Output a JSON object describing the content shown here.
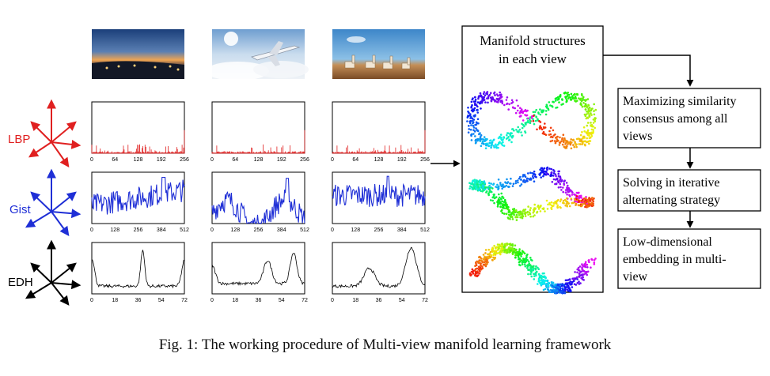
{
  "views": [
    {
      "name": "LBP",
      "color": "#e02020",
      "ticks": [
        "0",
        "64",
        "128",
        "192",
        "256"
      ]
    },
    {
      "name": "Gist",
      "color": "#1f2fd6",
      "ticks": [
        "0",
        "128",
        "256",
        "384",
        "512"
      ]
    },
    {
      "name": "EDH",
      "color": "#000000",
      "ticks": [
        "0",
        "18",
        "36",
        "54",
        "72"
      ]
    }
  ],
  "photos": [
    {
      "icon": "city-night-photo-icon"
    },
    {
      "icon": "airplane-clouds-photo-icon"
    },
    {
      "icon": "alpacas-photo-icon"
    }
  ],
  "manifold_panel": {
    "title_line1": "Manifold structures",
    "title_line2": "in each view"
  },
  "steps": [
    {
      "lines": [
        "Maximizing similarity",
        "consensus among all",
        "views"
      ]
    },
    {
      "lines": [
        "Solving in iterative",
        "alternating strategy"
      ]
    },
    {
      "lines": [
        "Low-dimensional",
        "embedding in multi-",
        "view"
      ]
    }
  ],
  "caption": "Fig. 1: The working procedure of Multi-view manifold learning framework"
}
